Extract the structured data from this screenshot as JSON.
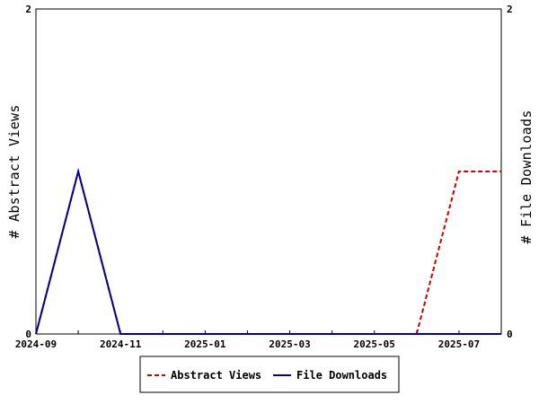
{
  "chart_data": {
    "type": "line",
    "x": [
      "2024-09",
      "2024-10",
      "2024-11",
      "2024-12",
      "2025-01",
      "2025-02",
      "2025-03",
      "2025-04",
      "2025-05",
      "2025-06",
      "2025-07",
      "2025-08"
    ],
    "x_tick_labels": [
      "2024-09",
      "2024-11",
      "2025-01",
      "2025-03",
      "2025-05",
      "2025-07"
    ],
    "series": [
      {
        "name": "Abstract Views",
        "axis": "left",
        "color": "#cc0000",
        "line_style": "dashed",
        "values": [
          0,
          1,
          0,
          0,
          0,
          0,
          0,
          0,
          0,
          0,
          1,
          1
        ]
      },
      {
        "name": "File Downloads",
        "axis": "right",
        "color": "#000099",
        "line_style": "solid",
        "values": [
          0,
          1,
          0,
          0,
          0,
          0,
          0,
          0,
          0,
          0,
          0,
          0
        ]
      }
    ],
    "ylabel_left": "# Abstract Views",
    "ylabel_right": "# File Downloads",
    "ylim_left": [
      0,
      2
    ],
    "ylim_right": [
      0,
      2
    ],
    "y_ticks_left": [
      "0",
      "2"
    ],
    "y_ticks_right": [
      "0",
      "2"
    ],
    "grid": false,
    "legend_position": "bottom-center"
  }
}
